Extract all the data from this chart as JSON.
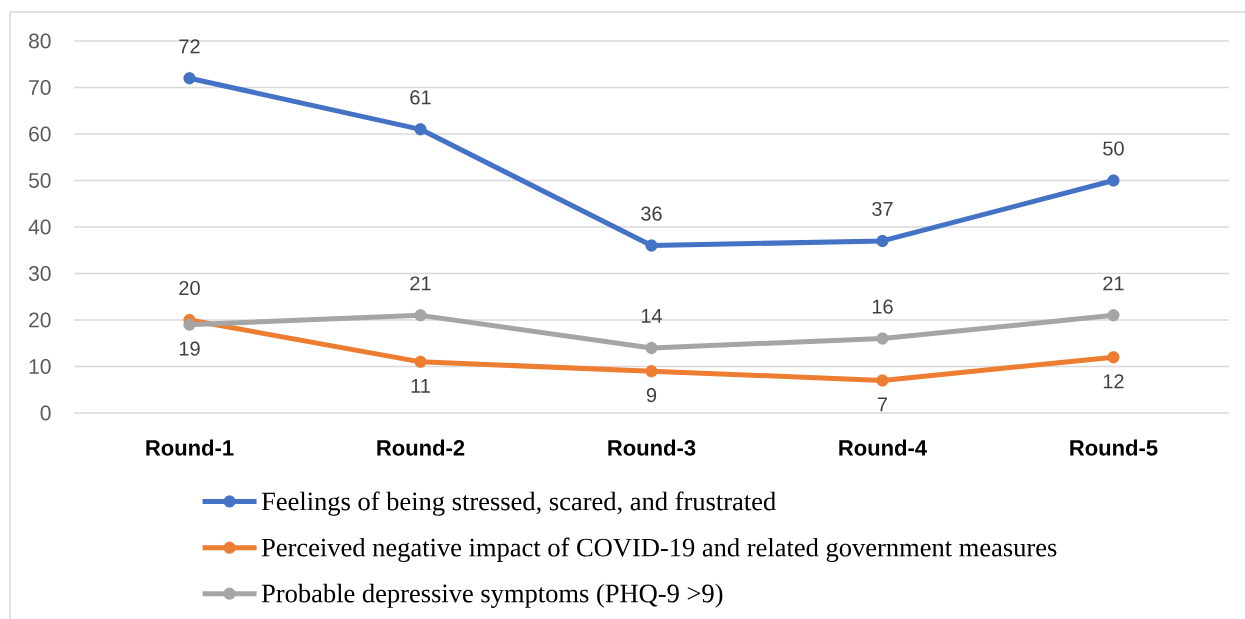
{
  "chart_data": {
    "type": "line",
    "categories": [
      "Round-1",
      "Round-2",
      "Round-3",
      "Round-4",
      "Round-5"
    ],
    "series": [
      {
        "name": "Feelings of being stressed, scared, and frustrated",
        "color": "#4472c4",
        "values": [
          72,
          61,
          36,
          37,
          50
        ]
      },
      {
        "name": "Perceived negative impact of COVID-19 and related government measures",
        "color": "#ed7d31",
        "values": [
          20,
          11,
          9,
          7,
          12
        ]
      },
      {
        "name": "Probable depressive symptoms (PHQ-9 >9)",
        "color": "#a5a5a5",
        "values": [
          19,
          21,
          14,
          16,
          21
        ]
      }
    ],
    "ylim": [
      0,
      80
    ],
    "yticks": [
      0,
      10,
      20,
      30,
      40,
      50,
      60,
      70,
      80
    ],
    "grid": "y",
    "legend": "bottom",
    "marker": "circle",
    "line_style": "solid",
    "data_labels": true
  }
}
